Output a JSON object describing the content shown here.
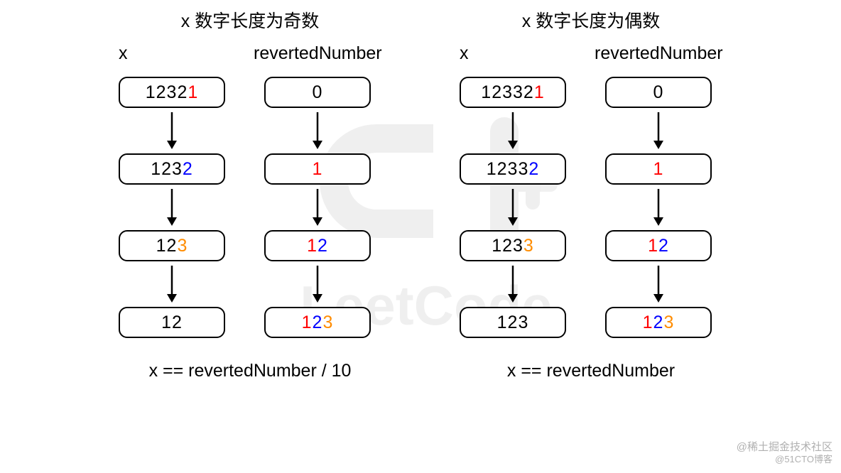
{
  "watermark": {
    "logo_text": "LeetCode",
    "bottom_line1": "@稀土掘金技术社区",
    "bottom_line2": "@51CTO博客"
  },
  "colors": {
    "black": "#000000",
    "red": "#ff0000",
    "blue": "#0000ff",
    "orange": "#ff8c00",
    "box_border": "#000000",
    "background": "#ffffff"
  },
  "style": {
    "font_family": "Comic Sans MS / handwritten",
    "title_fontsize": 25,
    "box_fontsize": 25,
    "box_border_radius": 12,
    "box_border_width": 2,
    "arrow_length": 56,
    "arrow_stroke_width": 2.5,
    "layout": "two-panels-side-by-side"
  },
  "panels": [
    {
      "title": "x 数字长度为奇数",
      "footer": "x == revertedNumber / 10",
      "columns": [
        {
          "header": "x",
          "boxes": [
            {
              "chars": [
                {
                  "t": "1",
                  "c": "black"
                },
                {
                  "t": "2",
                  "c": "black"
                },
                {
                  "t": "3",
                  "c": "black"
                },
                {
                  "t": "2",
                  "c": "black"
                },
                {
                  "t": "1",
                  "c": "red"
                }
              ]
            },
            {
              "chars": [
                {
                  "t": "1",
                  "c": "black"
                },
                {
                  "t": "2",
                  "c": "black"
                },
                {
                  "t": "3",
                  "c": "black"
                },
                {
                  "t": "2",
                  "c": "blue"
                }
              ]
            },
            {
              "chars": [
                {
                  "t": "1",
                  "c": "black"
                },
                {
                  "t": "2",
                  "c": "black"
                },
                {
                  "t": "3",
                  "c": "orange"
                }
              ]
            },
            {
              "chars": [
                {
                  "t": "1",
                  "c": "black"
                },
                {
                  "t": "2",
                  "c": "black"
                }
              ]
            }
          ]
        },
        {
          "header": "revertedNumber",
          "boxes": [
            {
              "chars": [
                {
                  "t": "0",
                  "c": "black"
                }
              ]
            },
            {
              "chars": [
                {
                  "t": "1",
                  "c": "red"
                }
              ]
            },
            {
              "chars": [
                {
                  "t": "1",
                  "c": "red"
                },
                {
                  "t": "2",
                  "c": "blue"
                }
              ]
            },
            {
              "chars": [
                {
                  "t": "1",
                  "c": "red"
                },
                {
                  "t": "2",
                  "c": "blue"
                },
                {
                  "t": "3",
                  "c": "orange"
                }
              ]
            }
          ]
        }
      ]
    },
    {
      "title": "x 数字长度为偶数",
      "footer": "x == revertedNumber",
      "columns": [
        {
          "header": "x",
          "boxes": [
            {
              "chars": [
                {
                  "t": "1",
                  "c": "black"
                },
                {
                  "t": "2",
                  "c": "black"
                },
                {
                  "t": "3",
                  "c": "black"
                },
                {
                  "t": "3",
                  "c": "black"
                },
                {
                  "t": "2",
                  "c": "black"
                },
                {
                  "t": "1",
                  "c": "red"
                }
              ]
            },
            {
              "chars": [
                {
                  "t": "1",
                  "c": "black"
                },
                {
                  "t": "2",
                  "c": "black"
                },
                {
                  "t": "3",
                  "c": "black"
                },
                {
                  "t": "3",
                  "c": "black"
                },
                {
                  "t": "2",
                  "c": "blue"
                }
              ]
            },
            {
              "chars": [
                {
                  "t": "1",
                  "c": "black"
                },
                {
                  "t": "2",
                  "c": "black"
                },
                {
                  "t": "3",
                  "c": "black"
                },
                {
                  "t": "3",
                  "c": "orange"
                }
              ]
            },
            {
              "chars": [
                {
                  "t": "1",
                  "c": "black"
                },
                {
                  "t": "2",
                  "c": "black"
                },
                {
                  "t": "3",
                  "c": "black"
                }
              ]
            }
          ]
        },
        {
          "header": "revertedNumber",
          "boxes": [
            {
              "chars": [
                {
                  "t": "0",
                  "c": "black"
                }
              ]
            },
            {
              "chars": [
                {
                  "t": "1",
                  "c": "red"
                }
              ]
            },
            {
              "chars": [
                {
                  "t": "1",
                  "c": "red"
                },
                {
                  "t": "2",
                  "c": "blue"
                }
              ]
            },
            {
              "chars": [
                {
                  "t": "1",
                  "c": "red"
                },
                {
                  "t": "2",
                  "c": "blue"
                },
                {
                  "t": "3",
                  "c": "orange"
                }
              ]
            }
          ]
        }
      ]
    }
  ]
}
